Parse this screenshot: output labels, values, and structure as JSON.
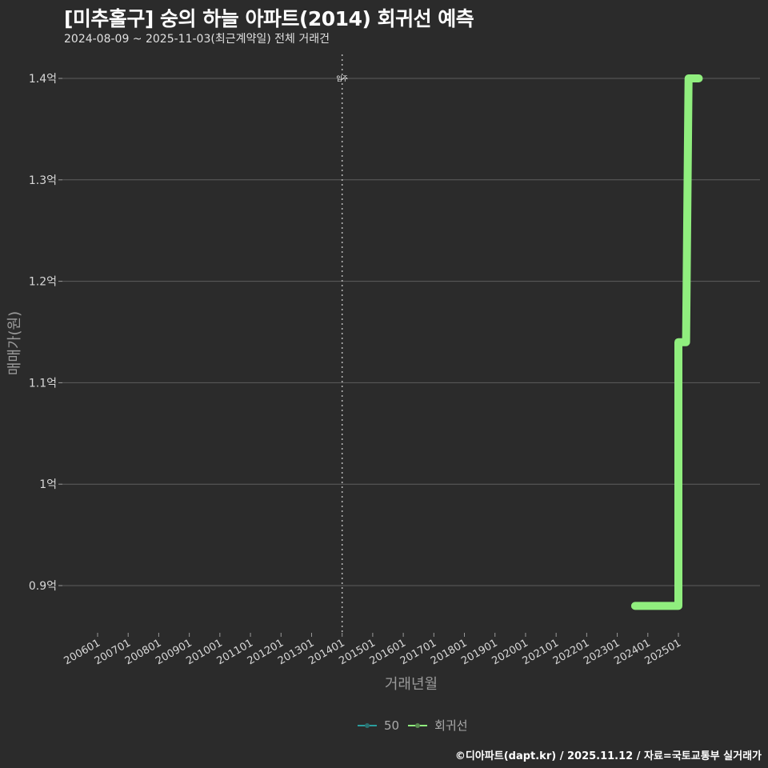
{
  "header": {
    "title": "[미추홀구] 숭의 하늘 아파트(2014) 회귀선 예측",
    "subtitle": "2024-08-09 ~ 2025-11-03(최근계약일) 전체 거래건"
  },
  "legend": {
    "items": [
      {
        "label": "50",
        "color": "#2a9d9d"
      },
      {
        "label": "회귀선",
        "color": "#90ee7e"
      }
    ]
  },
  "footer": {
    "credit": "©디아파트(dapt.kr) / 2025.11.12 / 자료=국토교통부 실거래가"
  },
  "chart_data": {
    "type": "line",
    "title": "[미추홀구] 숭의 하늘 아파트(2014) 회귀선 예측",
    "subtitle": "2024-08-09 ~ 2025-11-03(최근계약일) 전체 거래건",
    "xlabel": "거래년월",
    "ylabel": "매매가(원)",
    "x_ticks": [
      "200601",
      "200701",
      "200801",
      "200901",
      "201001",
      "201101",
      "201201",
      "201301",
      "201401",
      "201501",
      "201601",
      "201701",
      "201801",
      "201901",
      "202001",
      "202101",
      "202201",
      "202301",
      "202401",
      "202501"
    ],
    "y_ticks": [
      {
        "value": 0.9,
        "label": "0.9억"
      },
      {
        "value": 1.0,
        "label": "1억"
      },
      {
        "value": 1.1,
        "label": "1.1억"
      },
      {
        "value": 1.2,
        "label": "1.2억"
      },
      {
        "value": 1.3,
        "label": "1.3억"
      },
      {
        "value": 1.4,
        "label": "1.4억"
      }
    ],
    "ylim": [
      0.86,
      1.41
    ],
    "unit": "억",
    "grid": true,
    "legend_position": "bottom",
    "vline": {
      "x": "201401",
      "label": "입주",
      "style": "dotted"
    },
    "series": [
      {
        "name": "회귀선",
        "color": "#90ee7e",
        "points": [
          {
            "x": "202308",
            "y": 0.88
          },
          {
            "x": "202501",
            "y": 0.88
          },
          {
            "x": "202501",
            "y": 1.14
          },
          {
            "x": "202504",
            "y": 1.14
          },
          {
            "x": "202505",
            "y": 1.4
          },
          {
            "x": "202509",
            "y": 1.4
          }
        ]
      },
      {
        "name": "50",
        "color": "#2a9d9d",
        "points": []
      }
    ]
  }
}
